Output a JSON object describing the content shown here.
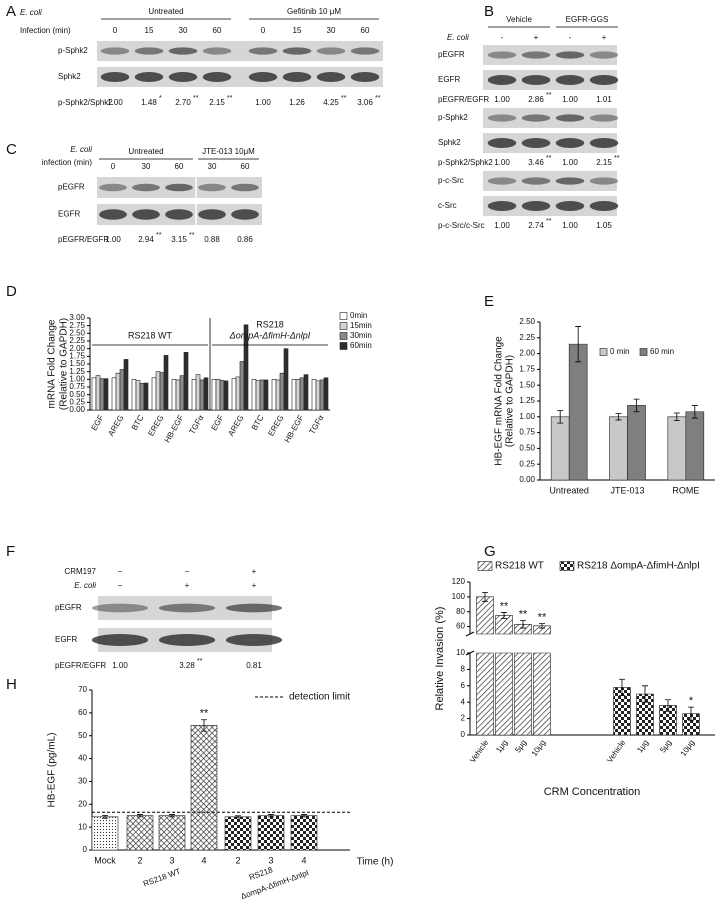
{
  "blots": [
    {
      "label": "A",
      "organism": "E. coli",
      "lane_title": "Infection (min)",
      "groups": [
        {
          "name": "Untreated",
          "lanes": [
            "0",
            "15",
            "30",
            "60"
          ]
        },
        {
          "name": "Gefitinib 10 μM",
          "lanes": [
            "0",
            "15",
            "30",
            "60"
          ]
        }
      ],
      "blocks": [
        {
          "rows": [
            "p-Sphk2",
            "Sphk2"
          ],
          "ratio": {
            "name": "p-Sphk2/Sphk2",
            "values": [
              "1.00",
              "1.48",
              "2.70",
              "2.15",
              "1.00",
              "1.26",
              "4.25",
              "3.06"
            ],
            "marks": [
              null,
              "*",
              "**",
              "**",
              null,
              null,
              "**",
              "**"
            ]
          }
        }
      ]
    },
    {
      "label": "B",
      "lane_title": "E. coli",
      "groups": [
        {
          "name": "Vehicle",
          "lanes": [
            "-",
            "+"
          ]
        },
        {
          "name": "EGFR-GGS",
          "lanes": [
            "-",
            "+"
          ]
        }
      ],
      "blocks": [
        {
          "rows": [
            "pEGFR",
            "EGFR"
          ],
          "ratio": {
            "name": "pEGFR/EGFR",
            "values": [
              "1.00",
              "2.86",
              "1.00",
              "1.01"
            ],
            "marks": [
              null,
              "**",
              null,
              null
            ]
          }
        },
        {
          "rows": [
            "p-Sphk2",
            "Sphk2"
          ],
          "ratio": {
            "name": "p-Sphk2/Sphk2",
            "values": [
              "1.00",
              "3.46",
              "1.00",
              "2.15"
            ],
            "marks": [
              null,
              "**",
              null,
              "**"
            ]
          }
        },
        {
          "rows": [
            "p-c-Src",
            "c-Src"
          ],
          "ratio": {
            "name": "p-c-Src/c-Src",
            "values": [
              "1.00",
              "2.74",
              "1.00",
              "1.05"
            ],
            "marks": [
              null,
              "**",
              null,
              null
            ]
          }
        }
      ]
    },
    {
      "label": "C",
      "organism": "E. coli",
      "lane_title": "infection (min)",
      "groups": [
        {
          "name": "Untreated",
          "lanes": [
            "0",
            "30",
            "60"
          ]
        },
        {
          "name": "JTE-013 10μM",
          "lanes": [
            "30",
            "60"
          ]
        }
      ],
      "blocks": [
        {
          "rows": [
            "pEGFR",
            "EGFR"
          ],
          "ratio": {
            "name": "pEGFR/EGFR",
            "values": [
              "1.00",
              "2.94",
              "3.15",
              "0.88",
              "0.86"
            ],
            "marks": [
              null,
              "**",
              "**",
              null,
              null
            ]
          }
        }
      ]
    },
    {
      "label": "F",
      "treatments": [
        {
          "name": "CRM197",
          "lanes": [
            "−",
            "−",
            "+"
          ]
        },
        {
          "name": "E. coli",
          "lanes": [
            "−",
            "+",
            "+"
          ]
        }
      ],
      "blocks": [
        {
          "rows": [
            "pEGFR",
            "EGFR"
          ],
          "ratio": {
            "name": "pEGFR/EGFR",
            "values": [
              "1.00",
              "3.28",
              "0.81"
            ],
            "marks": [
              null,
              "**",
              null
            ]
          }
        }
      ]
    }
  ],
  "chart_data": [
    {
      "panel": "D",
      "type": "bar",
      "ylabel": [
        "mRNA Fold Change",
        "(Relative to GAPDH)"
      ],
      "categories": [
        "EGF",
        "AREG",
        "BTC",
        "EREG",
        "HB-EGF",
        "TGFα",
        "EGF",
        "AREG",
        "BTC",
        "EREG",
        "HB-EGF",
        "TGFα"
      ],
      "groups": [
        [
          "RS218 WT"
        ],
        [
          "RS218",
          "ΔompA-ΔfimH-ΔnlpI"
        ]
      ],
      "series": [
        {
          "name": "0min",
          "color": "#ffffff",
          "values": [
            1.05,
            1.05,
            1.0,
            1.05,
            1.0,
            1.0,
            1.0,
            1.02,
            1.0,
            1.0,
            1.0,
            1.0
          ]
        },
        {
          "name": "15min",
          "color": "#d4d4d4",
          "values": [
            1.12,
            1.2,
            0.97,
            1.25,
            0.98,
            1.15,
            1.0,
            1.08,
            0.97,
            0.98,
            1.0,
            0.95
          ]
        },
        {
          "name": "30min",
          "color": "#8c8c8c",
          "values": [
            1.02,
            1.32,
            0.87,
            1.22,
            1.12,
            0.98,
            0.97,
            1.58,
            0.98,
            1.2,
            1.05,
            0.98
          ]
        },
        {
          "name": "60min",
          "color": "#2e2e2e",
          "values": [
            1.02,
            1.65,
            0.88,
            1.78,
            1.88,
            1.05,
            0.95,
            2.78,
            0.98,
            2.0,
            1.15,
            1.05
          ]
        }
      ],
      "ylim": [
        0,
        3
      ],
      "yticks": [
        {
          "value": 0,
          "label": "0.00"
        },
        {
          "value": 0.25,
          "label": "0.25"
        },
        {
          "value": 0.5,
          "label": "0.50"
        },
        {
          "value": 0.75,
          "label": "0.75"
        },
        {
          "value": 1,
          "label": "1.00"
        },
        {
          "value": 1.25,
          "label": "1.25"
        },
        {
          "value": 1.5,
          "label": "1.50"
        },
        {
          "value": 1.75,
          "label": "1.75"
        },
        {
          "value": 2,
          "label": "2.00"
        },
        {
          "value": 2.25,
          "label": "2.25"
        },
        {
          "value": 2.5,
          "label": "2.50"
        },
        {
          "value": 2.75,
          "label": "2.75"
        },
        {
          "value": 3,
          "label": "3.00"
        }
      ],
      "legend": "right"
    },
    {
      "panel": "E",
      "type": "bar",
      "ylabel": [
        "HB-EGF mRNA Fold Change",
        "(Relative to GAPDH)"
      ],
      "categories": [
        "Untreated",
        "JTE-013",
        "ROME"
      ],
      "series": [
        {
          "name": "0 min",
          "color": "#c8c8c8",
          "values": [
            1.0,
            1.0,
            1.0
          ],
          "errors": [
            0.1,
            0.05,
            0.06
          ]
        },
        {
          "name": "60 min",
          "color": "#7f7f7f",
          "values": [
            2.15,
            1.18,
            1.08
          ],
          "errors": [
            0.28,
            0.1,
            0.1
          ]
        }
      ],
      "ylim": [
        0,
        2.5
      ],
      "yticks": [
        {
          "value": 0,
          "label": "0.00"
        },
        {
          "value": 0.25,
          "label": "0.25"
        },
        {
          "value": 0.5,
          "label": "0.50"
        },
        {
          "value": 0.75,
          "label": "0.75"
        },
        {
          "value": 1,
          "label": "1.00"
        },
        {
          "value": 1.25,
          "label": "1.25"
        },
        {
          "value": 1.5,
          "label": "1.50"
        },
        {
          "value": 1.75,
          "label": "1.75"
        },
        {
          "value": 2,
          "label": "2.00"
        },
        {
          "value": 2.25,
          "label": "2.25"
        },
        {
          "value": 2.5,
          "label": "2.50"
        }
      ],
      "legend": "top"
    },
    {
      "panel": "G",
      "type": "bar",
      "ylabel": "Relative Invasion (%)",
      "xlabel": "CRM Concentration",
      "categories": [
        "Vehicle",
        "1μg",
        "5μg",
        "10μg",
        "Vehicle",
        "1μg",
        "5μg",
        "10μg"
      ],
      "series": [
        {
          "name": "RS218 WT",
          "pattern": "hatch",
          "values": [
            100,
            75,
            63,
            61,
            null,
            null,
            null,
            null
          ],
          "errors": [
            6,
            4,
            5,
            3,
            null,
            null,
            null,
            null
          ],
          "markers": [
            null,
            "**",
            "**",
            "**",
            null,
            null,
            null,
            null
          ]
        },
        {
          "name": "RS218 ΔompA-ΔfimH-ΔnlpI",
          "pattern": "checker",
          "values": [
            null,
            null,
            null,
            null,
            5.8,
            5.0,
            3.6,
            2.6
          ],
          "errors": [
            null,
            null,
            null,
            null,
            1.0,
            1.0,
            0.7,
            0.8
          ],
          "markers": [
            null,
            null,
            null,
            null,
            null,
            null,
            null,
            "*"
          ]
        }
      ],
      "ylim": [
        0,
        120
      ],
      "y_break": [
        10,
        50
      ],
      "yticks": [
        0,
        2,
        4,
        6,
        8,
        10,
        60,
        80,
        100,
        120
      ],
      "legend": "top"
    },
    {
      "panel": "H",
      "type": "bar",
      "ylabel": "HB-EGF (pg/mL)",
      "xlabel": "Time (h)",
      "categories": [
        "Mock",
        "2",
        "3",
        "4",
        "2",
        "3",
        "4"
      ],
      "groups": [
        [
          "RS218 WT"
        ],
        [
          "RS218",
          "ΔompA-ΔfimH-ΔnlpI"
        ]
      ],
      "series": [
        {
          "patterns": [
            "dots",
            "crosshatch",
            "crosshatch",
            "crosshatch",
            "checker",
            "checker",
            "checker"
          ],
          "values": [
            14.5,
            15,
            15,
            54.5,
            14.5,
            15,
            15
          ],
          "errors": [
            0.6,
            0.5,
            0.5,
            2.5,
            0.5,
            0.5,
            0.5
          ],
          "markers": [
            null,
            null,
            null,
            "**",
            null,
            null,
            null
          ]
        }
      ],
      "reference_line": {
        "value": 16.5,
        "label": "detection limit"
      },
      "ylim": [
        0,
        70
      ],
      "yticks": [
        0,
        10,
        20,
        30,
        40,
        50,
        60,
        70
      ]
    }
  ]
}
